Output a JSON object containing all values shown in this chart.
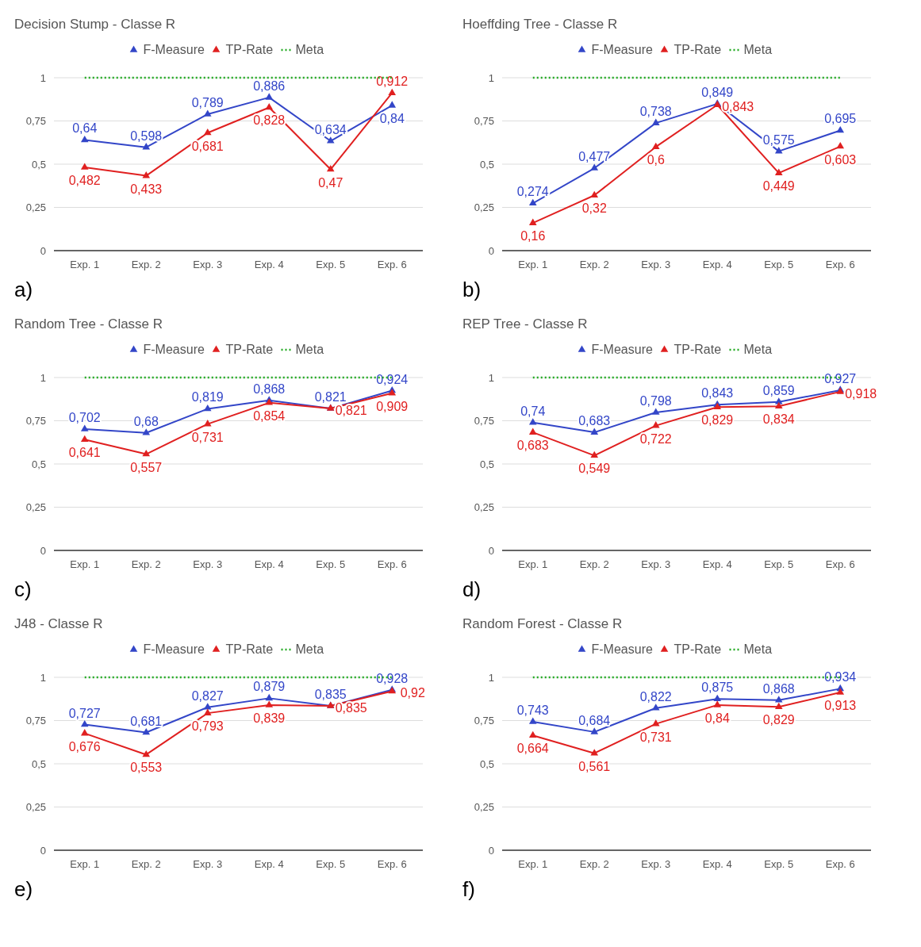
{
  "chart_data": [
    {
      "type": "line",
      "title": "Decision Stump - Classe R",
      "categories": [
        "Exp. 1",
        "Exp. 2",
        "Exp. 3",
        "Exp. 4",
        "Exp. 5",
        "Exp. 6"
      ],
      "ylim": [
        0,
        1
      ],
      "yticks": [
        {
          "value": 0,
          "label": "0"
        },
        {
          "value": 0.25,
          "label": "0,25"
        },
        {
          "value": 0.5,
          "label": "0,5"
        },
        {
          "value": 0.75,
          "label": "0,75"
        },
        {
          "value": 1,
          "label": "1"
        }
      ],
      "grid": "y",
      "legend": "top",
      "annotations": [
        "a)"
      ],
      "series": [
        {
          "name": "F-Measure",
          "color": "#3346c8",
          "marker": "triangle",
          "values": [
            0.64,
            0.598,
            0.789,
            0.886,
            0.634,
            0.84
          ],
          "value_labels": [
            "0,64",
            "0,598",
            "0,789",
            "0,886",
            "0,634",
            "0,84"
          ]
        },
        {
          "name": "TP-Rate",
          "color": "#e02020",
          "marker": "triangle",
          "values": [
            0.482,
            0.433,
            0.681,
            0.828,
            0.47,
            0.912
          ],
          "value_labels": [
            "0,482",
            "0,433",
            "0,681",
            "0,828",
            "0,47",
            "0,912"
          ]
        },
        {
          "name": "Meta",
          "color": "#22aa22",
          "marker": "none",
          "line_style": "dotted",
          "values": [
            1,
            1,
            1,
            1,
            1,
            1
          ]
        }
      ]
    },
    {
      "type": "line",
      "title": "Hoeffding Tree - Classe R",
      "categories": [
        "Exp. 1",
        "Exp. 2",
        "Exp. 3",
        "Exp. 4",
        "Exp. 5",
        "Exp. 6"
      ],
      "ylim": [
        0,
        1
      ],
      "yticks": [
        {
          "value": 0,
          "label": "0"
        },
        {
          "value": 0.25,
          "label": "0,25"
        },
        {
          "value": 0.5,
          "label": "0,5"
        },
        {
          "value": 0.75,
          "label": "0,75"
        },
        {
          "value": 1,
          "label": "1"
        }
      ],
      "grid": "y",
      "legend": "top",
      "annotations": [
        "b)"
      ],
      "series": [
        {
          "name": "F-Measure",
          "color": "#3346c8",
          "marker": "triangle",
          "values": [
            0.274,
            0.477,
            0.738,
            0.849,
            0.575,
            0.695
          ],
          "value_labels": [
            "0,274",
            "0,477",
            "0,738",
            "0,849",
            "0,575",
            "0,695"
          ]
        },
        {
          "name": "TP-Rate",
          "color": "#e02020",
          "marker": "triangle",
          "values": [
            0.16,
            0.32,
            0.6,
            0.843,
            0.449,
            0.603
          ],
          "value_labels": [
            "0,16",
            "0,32",
            "0,6",
            "0,843",
            "0,449",
            "0,603"
          ]
        },
        {
          "name": "Meta",
          "color": "#22aa22",
          "marker": "none",
          "line_style": "dotted",
          "values": [
            1,
            1,
            1,
            1,
            1,
            1
          ]
        }
      ]
    },
    {
      "type": "line",
      "title": "Random Tree - Classe R",
      "categories": [
        "Exp. 1",
        "Exp. 2",
        "Exp. 3",
        "Exp. 4",
        "Exp. 5",
        "Exp. 6"
      ],
      "ylim": [
        0,
        1
      ],
      "yticks": [
        {
          "value": 0,
          "label": "0"
        },
        {
          "value": 0.25,
          "label": "0,25"
        },
        {
          "value": 0.5,
          "label": "0,5"
        },
        {
          "value": 0.75,
          "label": "0,75"
        },
        {
          "value": 1,
          "label": "1"
        }
      ],
      "grid": "y",
      "legend": "top",
      "annotations": [
        "c)"
      ],
      "series": [
        {
          "name": "F-Measure",
          "color": "#3346c8",
          "marker": "triangle",
          "values": [
            0.702,
            0.68,
            0.819,
            0.868,
            0.821,
            0.924
          ],
          "value_labels": [
            "0,702",
            "0,68",
            "0,819",
            "0,868",
            "0,821",
            "0,924"
          ]
        },
        {
          "name": "TP-Rate",
          "color": "#e02020",
          "marker": "triangle",
          "values": [
            0.641,
            0.557,
            0.731,
            0.854,
            0.821,
            0.909
          ],
          "value_labels": [
            "0,641",
            "0,557",
            "0,731",
            "0,854",
            "0,821",
            "0,909"
          ]
        },
        {
          "name": "Meta",
          "color": "#22aa22",
          "marker": "none",
          "line_style": "dotted",
          "values": [
            1,
            1,
            1,
            1,
            1,
            1
          ]
        }
      ]
    },
    {
      "type": "line",
      "title": "REP Tree - Classe R",
      "categories": [
        "Exp. 1",
        "Exp. 2",
        "Exp. 3",
        "Exp. 4",
        "Exp. 5",
        "Exp. 6"
      ],
      "ylim": [
        0,
        1
      ],
      "yticks": [
        {
          "value": 0,
          "label": "0"
        },
        {
          "value": 0.25,
          "label": "0,25"
        },
        {
          "value": 0.5,
          "label": "0,5"
        },
        {
          "value": 0.75,
          "label": "0,75"
        },
        {
          "value": 1,
          "label": "1"
        }
      ],
      "grid": "y",
      "legend": "top",
      "annotations": [
        "d)"
      ],
      "series": [
        {
          "name": "F-Measure",
          "color": "#3346c8",
          "marker": "triangle",
          "values": [
            0.74,
            0.683,
            0.798,
            0.843,
            0.859,
            0.927
          ],
          "value_labels": [
            "0,74",
            "0,683",
            "0,798",
            "0,843",
            "0,859",
            "0,927"
          ]
        },
        {
          "name": "TP-Rate",
          "color": "#e02020",
          "marker": "triangle",
          "values": [
            0.683,
            0.549,
            0.722,
            0.829,
            0.834,
            0.918
          ],
          "value_labels": [
            "0,683",
            "0,549",
            "0,722",
            "0,829",
            "0,834",
            "0,918"
          ]
        },
        {
          "name": "Meta",
          "color": "#22aa22",
          "marker": "none",
          "line_style": "dotted",
          "values": [
            1,
            1,
            1,
            1,
            1,
            1
          ]
        }
      ]
    },
    {
      "type": "line",
      "title": "J48 - Classe R",
      "categories": [
        "Exp. 1",
        "Exp. 2",
        "Exp. 3",
        "Exp. 4",
        "Exp. 5",
        "Exp. 6"
      ],
      "ylim": [
        0,
        1
      ],
      "yticks": [
        {
          "value": 0,
          "label": "0"
        },
        {
          "value": 0.25,
          "label": "0,25"
        },
        {
          "value": 0.5,
          "label": "0,5"
        },
        {
          "value": 0.75,
          "label": "0,75"
        },
        {
          "value": 1,
          "label": "1"
        }
      ],
      "grid": "y",
      "legend": "top",
      "annotations": [
        "e)"
      ],
      "series": [
        {
          "name": "F-Measure",
          "color": "#3346c8",
          "marker": "triangle",
          "values": [
            0.727,
            0.681,
            0.827,
            0.879,
            0.835,
            0.928
          ],
          "value_labels": [
            "0,727",
            "0,681",
            "0,827",
            "0,879",
            "0,835",
            "0,928"
          ]
        },
        {
          "name": "TP-Rate",
          "color": "#e02020",
          "marker": "triangle",
          "values": [
            0.676,
            0.553,
            0.793,
            0.839,
            0.835,
            0.92
          ],
          "value_labels": [
            "0,676",
            "0,553",
            "0,793",
            "0,839",
            "0,835",
            "0,92"
          ]
        },
        {
          "name": "Meta",
          "color": "#22aa22",
          "marker": "none",
          "line_style": "dotted",
          "values": [
            1,
            1,
            1,
            1,
            1,
            1
          ]
        }
      ]
    },
    {
      "type": "line",
      "title": "Random Forest - Classe R",
      "categories": [
        "Exp. 1",
        "Exp. 2",
        "Exp. 3",
        "Exp. 4",
        "Exp. 5",
        "Exp. 6"
      ],
      "ylim": [
        0,
        1
      ],
      "yticks": [
        {
          "value": 0,
          "label": "0"
        },
        {
          "value": 0.25,
          "label": "0,25"
        },
        {
          "value": 0.5,
          "label": "0,5"
        },
        {
          "value": 0.75,
          "label": "0,75"
        },
        {
          "value": 1,
          "label": "1"
        }
      ],
      "grid": "y",
      "legend": "top",
      "annotations": [
        "f)"
      ],
      "series": [
        {
          "name": "F-Measure",
          "color": "#3346c8",
          "marker": "triangle",
          "values": [
            0.743,
            0.684,
            0.822,
            0.875,
            0.868,
            0.934
          ],
          "value_labels": [
            "0,743",
            "0,684",
            "0,822",
            "0,875",
            "0,868",
            "0,934"
          ]
        },
        {
          "name": "TP-Rate",
          "color": "#e02020",
          "marker": "triangle",
          "values": [
            0.664,
            0.561,
            0.731,
            0.84,
            0.829,
            0.913
          ],
          "value_labels": [
            "0,664",
            "0,561",
            "0,731",
            "0,84",
            "0,829",
            "0,913"
          ]
        },
        {
          "name": "Meta",
          "color": "#22aa22",
          "marker": "none",
          "line_style": "dotted",
          "values": [
            1,
            1,
            1,
            1,
            1,
            1
          ]
        }
      ]
    }
  ]
}
